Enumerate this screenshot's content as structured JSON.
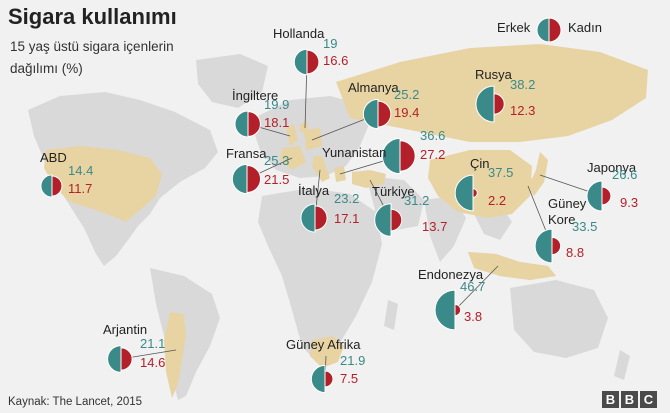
{
  "title": "Sigara kullanımı",
  "subtitle": "15 yaş üstü sigara içenlerin dağılımı (%)",
  "legend": {
    "male": "Erkek",
    "female": "Kadın"
  },
  "source": "Kaynak: The Lancet, 2015",
  "logo": [
    "B",
    "B",
    "C"
  ],
  "colors": {
    "male": "#3b8a8a",
    "female": "#b3202a",
    "land": "#d9d9d9",
    "ocean": "#f1f1f1",
    "highlight": "#e8d4a2"
  },
  "countries": [
    {
      "name": "ABD",
      "male": "14.4",
      "female": "11.7"
    },
    {
      "name": "Hollanda",
      "male": "19",
      "female": "16.6"
    },
    {
      "name": "İngiltere",
      "male": "19.9",
      "female": "18.1"
    },
    {
      "name": "Almanya",
      "male": "25.2",
      "female": "19.4"
    },
    {
      "name": "Rusya",
      "male": "38.2",
      "female": "12.3"
    },
    {
      "name": "Fransa",
      "male": "25.3",
      "female": "21.5"
    },
    {
      "name": "Yunanistan",
      "male": "36.6",
      "female": "27.2"
    },
    {
      "name": "Çin",
      "male": "37.5",
      "female": "2.2"
    },
    {
      "name": "Japonya",
      "male": "26.6",
      "female": "9.3"
    },
    {
      "name": "İtalya",
      "male": "23.2",
      "female": "17.1"
    },
    {
      "name": "Türkiye",
      "male": "31.2",
      "female": "13.7"
    },
    {
      "name": "Güney Kore",
      "male": "33.5",
      "female": "8.8"
    },
    {
      "name": "Endonezya",
      "male": "46.7",
      "female": "3.8"
    },
    {
      "name": "Arjantin",
      "male": "21.1",
      "female": "14.6"
    },
    {
      "name": "Güney Afrika",
      "male": "21.9",
      "female": "7.5"
    }
  ]
}
